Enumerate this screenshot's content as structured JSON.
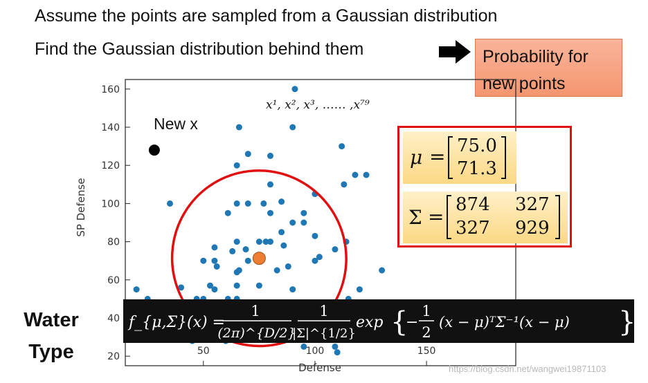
{
  "text": {
    "line1": "Assume the points are sampled from a Gaussian distribution",
    "line2": "Find the Gaussian distribution behind them",
    "prob_line1": "Probability for",
    "prob_line2": "new points",
    "samples": "x¹, x², x³, …… ,x⁷⁹",
    "new_x": "New x",
    "mu_symbol": "μ",
    "sigma_symbol": "Σ",
    "equals": "=",
    "mu_values": [
      "75.0",
      "71.3"
    ],
    "sigma_values": [
      [
        "874",
        "327"
      ],
      [
        "327",
        "929"
      ]
    ],
    "water_type_1": "Water",
    "water_type_2": "Type",
    "watermark": "https://blog.csdn.net/wangwei19871103"
  },
  "formula": {
    "lhs": "f_{μ,Σ}(x) =",
    "num1": "1",
    "den1": "(2π)^{D/2}",
    "num2": "1",
    "den2": "|Σ|^{1/2}",
    "exp": "exp",
    "brace_open": "{",
    "minus": "−",
    "num3": "1",
    "den3": "2",
    "quad": "(x − μ)ᵀΣ⁻¹(x − μ)",
    "brace_close": "}"
  },
  "colors": {
    "points": "#1f77b4",
    "new_point": "#000000",
    "mean_point": "#ed7d31",
    "ellipse": "#e01010"
  },
  "chart_data": {
    "type": "scatter",
    "xlabel": "Defense",
    "ylabel": "SP Defense",
    "xlim": [
      15,
      190
    ],
    "ylim": [
      15,
      165
    ],
    "xticks": [
      50,
      100,
      150
    ],
    "yticks": [
      20,
      40,
      60,
      80,
      100,
      120,
      140,
      160
    ],
    "points": [
      [
        91,
        160
      ],
      [
        66,
        140
      ],
      [
        90,
        140
      ],
      [
        112,
        130
      ],
      [
        70,
        126
      ],
      [
        80,
        125
      ],
      [
        65,
        120
      ],
      [
        113,
        110
      ],
      [
        118,
        115
      ],
      [
        123,
        115
      ],
      [
        80,
        110
      ],
      [
        100,
        105
      ],
      [
        61,
        95
      ],
      [
        35,
        100
      ],
      [
        65,
        100
      ],
      [
        70,
        100
      ],
      [
        77,
        100
      ],
      [
        85,
        101
      ],
      [
        80,
        95
      ],
      [
        95,
        95
      ],
      [
        95,
        90
      ],
      [
        90,
        90
      ],
      [
        85,
        85
      ],
      [
        80,
        80
      ],
      [
        75,
        80
      ],
      [
        65,
        80
      ],
      [
        55,
        77
      ],
      [
        63,
        75
      ],
      [
        100,
        83
      ],
      [
        109,
        76
      ],
      [
        114,
        80
      ],
      [
        50,
        70
      ],
      [
        55,
        70
      ],
      [
        56,
        67
      ],
      [
        65,
        64
      ],
      [
        70,
        70
      ],
      [
        83,
        65
      ],
      [
        88,
        67
      ],
      [
        100,
        70
      ],
      [
        130,
        65
      ],
      [
        53,
        57
      ],
      [
        55,
        55
      ],
      [
        40,
        56
      ],
      [
        65,
        57
      ],
      [
        75,
        57
      ],
      [
        90,
        55
      ],
      [
        120,
        55
      ],
      [
        61,
        50
      ],
      [
        65,
        50
      ],
      [
        64,
        48
      ],
      [
        47,
        50
      ],
      [
        50,
        50
      ],
      [
        45,
        44
      ],
      [
        41,
        42
      ],
      [
        40,
        40
      ],
      [
        35,
        37
      ],
      [
        65,
        40
      ],
      [
        65,
        35
      ],
      [
        95,
        45
      ],
      [
        115,
        50
      ],
      [
        20,
        55
      ],
      [
        25,
        50
      ],
      [
        30,
        45
      ],
      [
        175,
        45
      ],
      [
        60,
        28
      ],
      [
        75,
        29
      ],
      [
        70,
        31
      ],
      [
        95,
        25
      ],
      [
        109,
        25
      ],
      [
        110,
        22
      ],
      [
        55,
        30
      ],
      [
        125,
        30
      ],
      [
        50,
        33
      ],
      [
        45,
        28
      ],
      [
        66,
        65
      ],
      [
        78,
        80
      ],
      [
        86,
        78
      ],
      [
        69,
        76
      ],
      [
        102,
        72
      ]
    ],
    "new_point": [
      28,
      128
    ],
    "mean": [
      75.0,
      71.3
    ],
    "ellipse": {
      "center": [
        75.0,
        71.3
      ],
      "rx": 39,
      "ry": 46,
      "angle": -14
    }
  }
}
